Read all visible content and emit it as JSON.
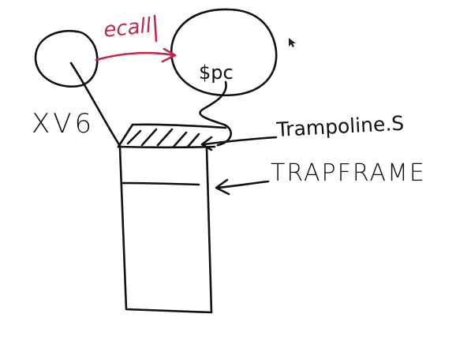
{
  "labels": {
    "ecall": "ecall",
    "os": "XV6",
    "program_counter": "$pc",
    "trampoline": "Trampoline.S",
    "trapframe": "TRAPFRAME"
  },
  "colors": {
    "ink": "#111111",
    "ecall_ink": "#c0294a",
    "background": "#ffffff"
  },
  "icons": {
    "cursor": "mouse-pointer-icon"
  }
}
